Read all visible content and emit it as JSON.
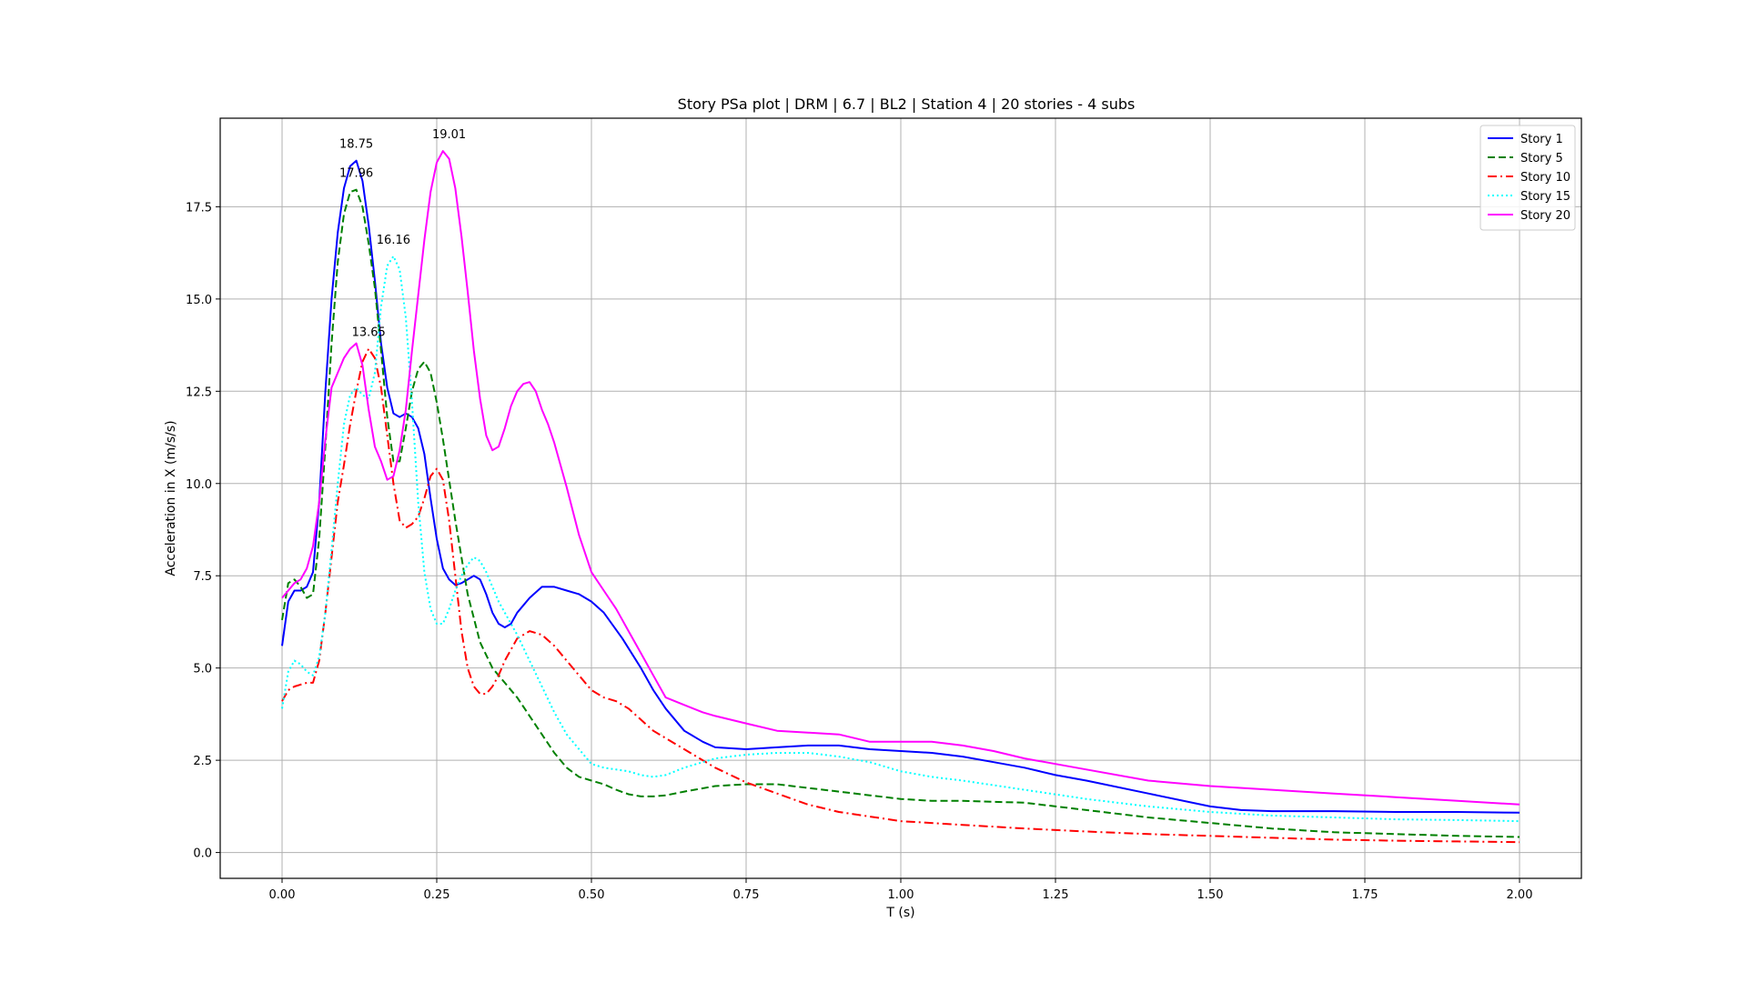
{
  "chart_data": {
    "type": "line",
    "title": "Story PSa plot | DRM |  6.7 | BL2 | Station 4 | 20 stories - 4 subs",
    "xlabel": "T (s)",
    "ylabel": "Acceleration in X (m/s/s)",
    "xlim": [
      -0.1,
      2.1
    ],
    "ylim": [
      -0.7,
      19.9
    ],
    "xticks": [
      0.0,
      0.25,
      0.5,
      0.75,
      1.0,
      1.25,
      1.5,
      1.75,
      2.0
    ],
    "xtick_labels": [
      "0.00",
      "0.25",
      "0.50",
      "0.75",
      "1.00",
      "1.25",
      "1.50",
      "1.75",
      "2.00"
    ],
    "yticks": [
      0.0,
      2.5,
      5.0,
      7.5,
      10.0,
      12.5,
      15.0,
      17.5
    ],
    "ytick_labels": [
      "0.0",
      "2.5",
      "5.0",
      "7.5",
      "10.0",
      "12.5",
      "15.0",
      "17.5"
    ],
    "grid": true,
    "legend_position": "top-right",
    "series": [
      {
        "name": "Story 1",
        "color": "#0000ff",
        "dash": "solid",
        "x": [
          0.0,
          0.01,
          0.02,
          0.03,
          0.04,
          0.05,
          0.06,
          0.07,
          0.08,
          0.09,
          0.1,
          0.11,
          0.12,
          0.13,
          0.14,
          0.15,
          0.16,
          0.17,
          0.18,
          0.19,
          0.2,
          0.21,
          0.22,
          0.23,
          0.24,
          0.25,
          0.26,
          0.27,
          0.28,
          0.29,
          0.3,
          0.31,
          0.32,
          0.33,
          0.34,
          0.35,
          0.36,
          0.37,
          0.38,
          0.4,
          0.42,
          0.44,
          0.46,
          0.48,
          0.5,
          0.52,
          0.55,
          0.58,
          0.6,
          0.62,
          0.65,
          0.68,
          0.7,
          0.75,
          0.8,
          0.85,
          0.9,
          0.95,
          1.0,
          1.05,
          1.1,
          1.15,
          1.2,
          1.25,
          1.3,
          1.4,
          1.5,
          1.55,
          1.6,
          1.7,
          1.8,
          1.9,
          2.0
        ],
        "y": [
          5.6,
          6.8,
          7.1,
          7.1,
          7.2,
          7.6,
          9.5,
          12.5,
          15.0,
          16.8,
          18.0,
          18.6,
          18.75,
          18.2,
          17.0,
          15.5,
          13.8,
          12.6,
          11.9,
          11.8,
          11.9,
          11.8,
          11.5,
          10.8,
          9.6,
          8.5,
          7.7,
          7.4,
          7.25,
          7.3,
          7.4,
          7.5,
          7.4,
          7.0,
          6.5,
          6.2,
          6.1,
          6.2,
          6.5,
          6.9,
          7.2,
          7.2,
          7.1,
          7.0,
          6.8,
          6.5,
          5.8,
          5.0,
          4.4,
          3.9,
          3.3,
          3.0,
          2.85,
          2.8,
          2.85,
          2.9,
          2.9,
          2.8,
          2.75,
          2.7,
          2.6,
          2.45,
          2.3,
          2.1,
          1.95,
          1.6,
          1.25,
          1.15,
          1.12,
          1.12,
          1.1,
          1.1,
          1.08
        ]
      },
      {
        "name": "Story 5",
        "color": "#008000",
        "dash": "dashed",
        "x": [
          0.0,
          0.01,
          0.02,
          0.03,
          0.04,
          0.05,
          0.06,
          0.07,
          0.08,
          0.09,
          0.1,
          0.11,
          0.12,
          0.13,
          0.14,
          0.15,
          0.16,
          0.17,
          0.18,
          0.19,
          0.2,
          0.21,
          0.22,
          0.23,
          0.24,
          0.25,
          0.26,
          0.27,
          0.28,
          0.29,
          0.3,
          0.32,
          0.34,
          0.36,
          0.38,
          0.4,
          0.42,
          0.44,
          0.46,
          0.48,
          0.5,
          0.52,
          0.54,
          0.56,
          0.58,
          0.6,
          0.62,
          0.65,
          0.7,
          0.75,
          0.8,
          0.85,
          0.9,
          0.95,
          1.0,
          1.05,
          1.1,
          1.2,
          1.3,
          1.4,
          1.5,
          1.6,
          1.7,
          1.8,
          1.9,
          2.0
        ],
        "y": [
          6.3,
          7.3,
          7.4,
          7.2,
          6.9,
          7.0,
          8.5,
          11.0,
          13.8,
          16.0,
          17.3,
          17.9,
          17.96,
          17.5,
          16.5,
          15.3,
          13.6,
          11.8,
          10.6,
          10.6,
          11.5,
          12.5,
          13.1,
          13.3,
          13.0,
          12.2,
          11.2,
          10.1,
          9.0,
          8.0,
          7.0,
          5.7,
          5.0,
          4.6,
          4.2,
          3.7,
          3.2,
          2.7,
          2.3,
          2.05,
          1.95,
          1.85,
          1.7,
          1.58,
          1.52,
          1.52,
          1.55,
          1.65,
          1.8,
          1.85,
          1.85,
          1.75,
          1.65,
          1.55,
          1.45,
          1.4,
          1.4,
          1.35,
          1.15,
          0.95,
          0.8,
          0.65,
          0.55,
          0.5,
          0.45,
          0.42
        ]
      },
      {
        "name": "Story 10",
        "color": "#ff0000",
        "dash": "dashdot",
        "x": [
          0.0,
          0.01,
          0.02,
          0.03,
          0.04,
          0.05,
          0.06,
          0.07,
          0.08,
          0.09,
          0.1,
          0.11,
          0.12,
          0.13,
          0.14,
          0.15,
          0.16,
          0.17,
          0.18,
          0.19,
          0.2,
          0.21,
          0.22,
          0.23,
          0.24,
          0.25,
          0.26,
          0.27,
          0.28,
          0.29,
          0.3,
          0.31,
          0.32,
          0.33,
          0.34,
          0.35,
          0.36,
          0.38,
          0.4,
          0.42,
          0.44,
          0.46,
          0.48,
          0.5,
          0.52,
          0.54,
          0.56,
          0.6,
          0.65,
          0.7,
          0.75,
          0.8,
          0.85,
          0.9,
          1.0,
          1.1,
          1.2,
          1.3,
          1.4,
          1.5,
          1.6,
          1.7,
          1.8,
          1.9,
          2.0
        ],
        "y": [
          4.1,
          4.4,
          4.5,
          4.55,
          4.6,
          4.6,
          5.2,
          6.5,
          8.0,
          9.5,
          10.5,
          11.6,
          12.5,
          13.3,
          13.65,
          13.4,
          12.6,
          11.3,
          10.0,
          9.0,
          8.8,
          8.9,
          9.1,
          9.6,
          10.2,
          10.4,
          10.1,
          9.0,
          7.5,
          6.0,
          5.0,
          4.5,
          4.3,
          4.3,
          4.5,
          4.8,
          5.2,
          5.8,
          6.0,
          5.9,
          5.6,
          5.2,
          4.8,
          4.4,
          4.2,
          4.1,
          3.9,
          3.3,
          2.8,
          2.3,
          1.9,
          1.6,
          1.3,
          1.1,
          0.85,
          0.75,
          0.65,
          0.57,
          0.5,
          0.45,
          0.4,
          0.35,
          0.32,
          0.3,
          0.28
        ]
      },
      {
        "name": "Story 15",
        "color": "#00ffff",
        "dash": "dotted",
        "x": [
          0.0,
          0.01,
          0.02,
          0.03,
          0.04,
          0.05,
          0.06,
          0.07,
          0.08,
          0.09,
          0.1,
          0.11,
          0.12,
          0.13,
          0.14,
          0.15,
          0.16,
          0.17,
          0.18,
          0.19,
          0.2,
          0.21,
          0.22,
          0.23,
          0.24,
          0.25,
          0.26,
          0.27,
          0.28,
          0.29,
          0.3,
          0.31,
          0.32,
          0.33,
          0.34,
          0.35,
          0.36,
          0.38,
          0.4,
          0.42,
          0.44,
          0.46,
          0.48,
          0.5,
          0.52,
          0.54,
          0.56,
          0.58,
          0.6,
          0.62,
          0.65,
          0.7,
          0.75,
          0.8,
          0.85,
          0.9,
          0.95,
          1.0,
          1.05,
          1.1,
          1.2,
          1.3,
          1.4,
          1.5,
          1.6,
          1.7,
          1.8,
          1.9,
          2.0
        ],
        "y": [
          3.9,
          4.9,
          5.2,
          5.1,
          4.9,
          4.8,
          5.3,
          6.5,
          8.2,
          10.0,
          11.6,
          12.4,
          12.6,
          12.4,
          12.3,
          13.0,
          14.8,
          15.9,
          16.16,
          15.8,
          14.5,
          12.2,
          9.5,
          7.6,
          6.6,
          6.2,
          6.2,
          6.6,
          7.1,
          7.5,
          7.8,
          8.0,
          7.9,
          7.6,
          7.2,
          6.8,
          6.5,
          5.9,
          5.2,
          4.5,
          3.8,
          3.2,
          2.8,
          2.4,
          2.3,
          2.25,
          2.2,
          2.1,
          2.05,
          2.1,
          2.3,
          2.55,
          2.65,
          2.7,
          2.7,
          2.6,
          2.45,
          2.2,
          2.05,
          1.95,
          1.7,
          1.45,
          1.25,
          1.1,
          1.0,
          0.95,
          0.9,
          0.88,
          0.85
        ]
      },
      {
        "name": "Story 20",
        "color": "#ff00ff",
        "dash": "solid",
        "x": [
          0.0,
          0.01,
          0.02,
          0.03,
          0.04,
          0.05,
          0.06,
          0.07,
          0.08,
          0.09,
          0.1,
          0.11,
          0.12,
          0.13,
          0.14,
          0.15,
          0.16,
          0.17,
          0.18,
          0.19,
          0.2,
          0.21,
          0.22,
          0.23,
          0.24,
          0.25,
          0.26,
          0.27,
          0.28,
          0.29,
          0.3,
          0.31,
          0.32,
          0.33,
          0.34,
          0.35,
          0.36,
          0.37,
          0.38,
          0.39,
          0.4,
          0.41,
          0.42,
          0.43,
          0.44,
          0.45,
          0.46,
          0.48,
          0.5,
          0.52,
          0.54,
          0.56,
          0.58,
          0.6,
          0.62,
          0.65,
          0.68,
          0.7,
          0.75,
          0.8,
          0.85,
          0.9,
          0.95,
          1.0,
          1.05,
          1.1,
          1.15,
          1.2,
          1.25,
          1.3,
          1.4,
          1.5,
          1.6,
          1.7,
          1.8,
          1.9,
          2.0
        ],
        "y": [
          6.9,
          7.1,
          7.3,
          7.4,
          7.7,
          8.3,
          9.5,
          11.2,
          12.6,
          13.0,
          13.4,
          13.65,
          13.8,
          13.2,
          12.0,
          11.0,
          10.6,
          10.1,
          10.2,
          10.9,
          12.0,
          13.6,
          15.1,
          16.6,
          17.9,
          18.7,
          19.01,
          18.8,
          18.0,
          16.7,
          15.2,
          13.6,
          12.3,
          11.3,
          10.9,
          11.0,
          11.5,
          12.1,
          12.5,
          12.7,
          12.75,
          12.5,
          12.0,
          11.6,
          11.1,
          10.5,
          9.9,
          8.6,
          7.6,
          7.1,
          6.6,
          6.0,
          5.4,
          4.8,
          4.2,
          4.0,
          3.8,
          3.7,
          3.5,
          3.3,
          3.25,
          3.2,
          3.0,
          3.0,
          3.0,
          2.9,
          2.75,
          2.55,
          2.4,
          2.25,
          1.95,
          1.8,
          1.7,
          1.6,
          1.5,
          1.4,
          1.3
        ]
      }
    ],
    "annotations": [
      {
        "text": "18.75",
        "x": 0.12,
        "y": 18.75
      },
      {
        "text": "17.96",
        "x": 0.12,
        "y": 17.96
      },
      {
        "text": "16.16",
        "x": 0.18,
        "y": 16.16
      },
      {
        "text": "13.65",
        "x": 0.14,
        "y": 13.65
      },
      {
        "text": "19.01",
        "x": 0.27,
        "y": 19.01
      }
    ]
  }
}
